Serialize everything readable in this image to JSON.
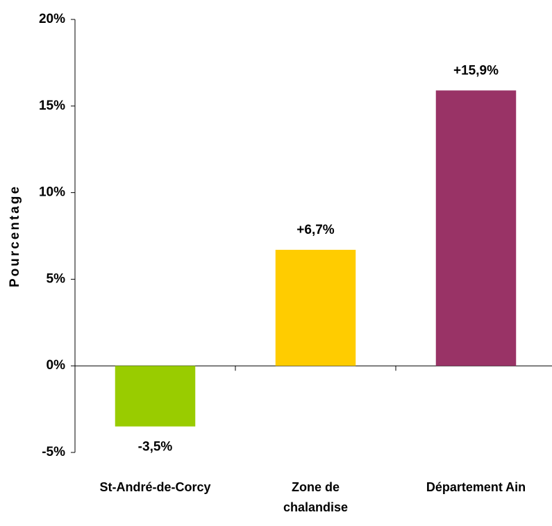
{
  "chart_data": {
    "type": "bar",
    "ylabel": "Pourcentage",
    "categories": [
      "St-André-de-Corcy",
      "Zone de chalandise",
      "Département Ain"
    ],
    "values": [
      -3.5,
      6.7,
      15.9
    ],
    "value_labels": [
      "-3,5%",
      "+6,7%",
      "+15,9%"
    ],
    "colors": [
      "#99cc00",
      "#ffcc00",
      "#993366"
    ],
    "ylim": [
      -5,
      20
    ],
    "yticks": [
      {
        "value": -5,
        "label": "-5%"
      },
      {
        "value": 0,
        "label": "0%"
      },
      {
        "value": 5,
        "label": "5%"
      },
      {
        "value": 10,
        "label": "10%"
      },
      {
        "value": 15,
        "label": "15%"
      },
      {
        "value": 20,
        "label": "20%"
      }
    ],
    "grid": false
  }
}
